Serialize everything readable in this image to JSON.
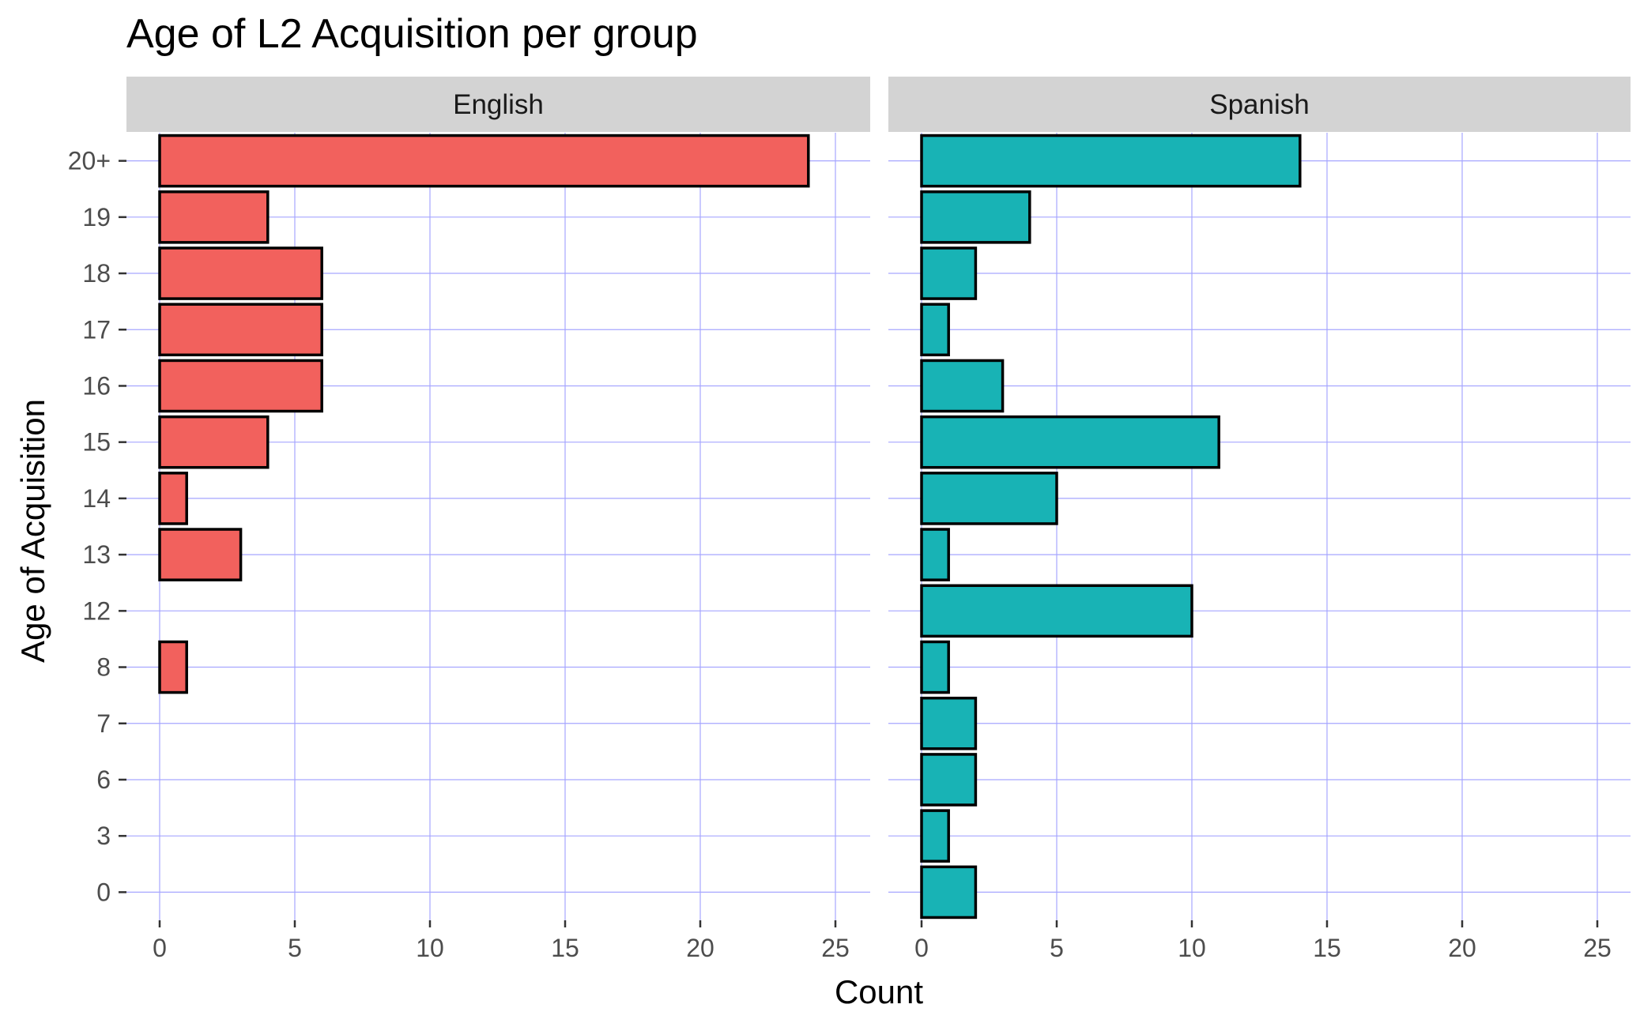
{
  "chart_data": {
    "type": "bar",
    "orientation": "horizontal",
    "title": "Age of L2 Acquisition per group",
    "xlabel": "Count",
    "ylabel": "Age of Acquisition",
    "categories": [
      "0",
      "3",
      "6",
      "7",
      "8",
      "12",
      "13",
      "14",
      "15",
      "16",
      "17",
      "18",
      "19",
      "20+"
    ],
    "xlim": [
      0,
      26
    ],
    "xticks": [
      0,
      5,
      10,
      15,
      20,
      25
    ],
    "grid": true,
    "grid_color": "#a6a6ff",
    "strip_color": "#d3d3d3",
    "bar_outline": "#000000",
    "panels": [
      {
        "name": "English",
        "color": "#f2615d",
        "values": [
          0,
          0,
          0,
          0,
          1,
          0,
          3,
          1,
          4,
          6,
          6,
          6,
          4,
          24
        ]
      },
      {
        "name": "Spanish",
        "color": "#18b3b5",
        "values": [
          2,
          1,
          2,
          2,
          1,
          10,
          1,
          5,
          11,
          3,
          1,
          2,
          4,
          14
        ]
      }
    ]
  }
}
